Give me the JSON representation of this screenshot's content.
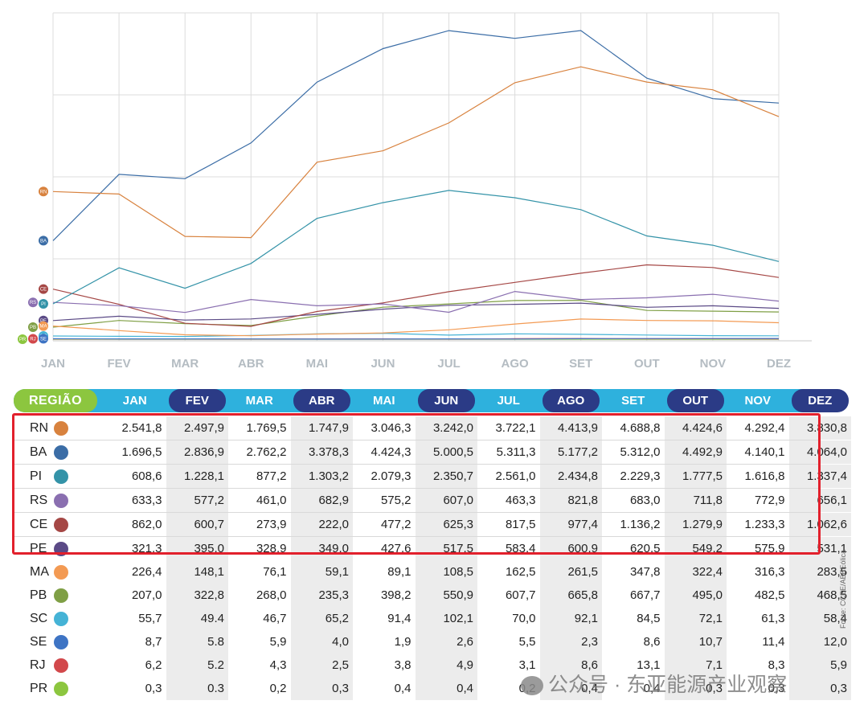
{
  "chart_data": {
    "type": "line",
    "x": [
      "JAN",
      "FEV",
      "MAR",
      "ABR",
      "MAI",
      "JUN",
      "JUL",
      "AGO",
      "SET",
      "OUT",
      "NOV",
      "DEZ"
    ],
    "ylim": [
      0,
      5312
    ],
    "grid": true,
    "legend": "left",
    "series": [
      {
        "name": "RN",
        "color": "#d8823e",
        "values": [
          2541.8,
          2497.9,
          1769.5,
          1747.9,
          3046.3,
          3242.0,
          3722.1,
          4413.9,
          4688.8,
          4424.6,
          4292.4,
          3830.8
        ]
      },
      {
        "name": "BA",
        "color": "#3b6da6",
        "values": [
          1696.5,
          2836.9,
          2762.2,
          3378.3,
          4424.3,
          5000.5,
          5311.3,
          5177.2,
          5312.0,
          4492.9,
          4140.1,
          4064.0
        ]
      },
      {
        "name": "PI",
        "color": "#3493a8",
        "values": [
          608.6,
          1228.1,
          877.2,
          1303.2,
          2079.3,
          2350.7,
          2561.0,
          2434.8,
          2229.3,
          1777.5,
          1616.8,
          1337.4
        ]
      },
      {
        "name": "RS",
        "color": "#8a6fb0",
        "values": [
          633.3,
          577.2,
          461.0,
          682.9,
          575.2,
          607.0,
          463.3,
          821.8,
          683.0,
          711.8,
          772.9,
          656.1
        ]
      },
      {
        "name": "CE",
        "color": "#a54745",
        "values": [
          862.0,
          600.7,
          273.9,
          222.0,
          477.2,
          625.3,
          817.5,
          977.4,
          1136.2,
          1279.9,
          1233.3,
          1062.6
        ]
      },
      {
        "name": "PE",
        "color": "#5b4a86",
        "values": [
          321.3,
          395.0,
          328.9,
          349.0,
          427.6,
          517.5,
          583.4,
          600.9,
          620.5,
          549.2,
          575.9,
          531.1
        ]
      },
      {
        "name": "MA",
        "color": "#f39a53",
        "values": [
          226.4,
          148.1,
          76.1,
          59.1,
          89.1,
          108.5,
          162.5,
          261.5,
          347.8,
          322.4,
          316.3,
          283.5
        ]
      },
      {
        "name": "PB",
        "color": "#7f9f45",
        "values": [
          207.0,
          322.8,
          268.0,
          235.3,
          398.2,
          550.9,
          607.7,
          665.8,
          667.7,
          495.0,
          482.5,
          468.5
        ]
      },
      {
        "name": "SC",
        "color": "#45b3d6",
        "values": [
          55.7,
          49.4,
          46.7,
          65.2,
          91.4,
          102.1,
          70.0,
          92.1,
          84.5,
          72.1,
          61.3,
          58.4
        ]
      },
      {
        "name": "SE",
        "color": "#3e74c4",
        "values": [
          8.7,
          5.8,
          5.9,
          4.0,
          1.9,
          2.6,
          5.5,
          2.3,
          8.6,
          10.7,
          11.4,
          12.0
        ]
      },
      {
        "name": "RJ",
        "color": "#d2484b",
        "values": [
          6.2,
          5.2,
          4.3,
          2.5,
          3.8,
          4.9,
          3.1,
          8.6,
          13.1,
          7.1,
          8.3,
          5.9
        ]
      },
      {
        "name": "PR",
        "color": "#8cc63f",
        "values": [
          0.3,
          0.3,
          0.2,
          0.3,
          0.4,
          0.4,
          0.2,
          0.4,
          0.4,
          0.3,
          0.3,
          0.3
        ]
      }
    ]
  },
  "table": {
    "header_label": "REGIÃO",
    "months": [
      "JAN",
      "FEV",
      "MAR",
      "ABR",
      "MAI",
      "JUN",
      "JUL",
      "AGO",
      "SET",
      "OUT",
      "NOV",
      "DEZ"
    ],
    "rows": [
      {
        "name": "RN",
        "color": "#d8823e",
        "cells": [
          "2.541,8",
          "2.497,9",
          "1.769,5",
          "1.747,9",
          "3.046,3",
          "3.242,0",
          "3.722,1",
          "4.413,9",
          "4.688,8",
          "4.424,6",
          "4.292,4",
          "3.830,8"
        ]
      },
      {
        "name": "BA",
        "color": "#3b6da6",
        "cells": [
          "1.696,5",
          "2.836,9",
          "2.762,2",
          "3.378,3",
          "4.424,3",
          "5.000,5",
          "5.311,3",
          "5.177,2",
          "5.312,0",
          "4.492,9",
          "4.140,1",
          "4.064,0"
        ]
      },
      {
        "name": "PI",
        "color": "#3493a8",
        "cells": [
          "608,6",
          "1.228,1",
          "877,2",
          "1.303,2",
          "2.079,3",
          "2.350,7",
          "2.561,0",
          "2.434,8",
          "2.229,3",
          "1.777,5",
          "1.616,8",
          "1.337,4"
        ]
      },
      {
        "name": "RS",
        "color": "#8a6fb0",
        "cells": [
          "633,3",
          "577,2",
          "461,0",
          "682,9",
          "575,2",
          "607,0",
          "463,3",
          "821,8",
          "683,0",
          "711,8",
          "772,9",
          "656,1"
        ]
      },
      {
        "name": "CE",
        "color": "#a54745",
        "cells": [
          "862,0",
          "600,7",
          "273,9",
          "222,0",
          "477,2",
          "625,3",
          "817,5",
          "977,4",
          "1.136,2",
          "1.279,9",
          "1.233,3",
          "1.062,6"
        ]
      },
      {
        "name": "PE",
        "color": "#5b4a86",
        "cells": [
          "321,3",
          "395,0",
          "328,9",
          "349,0",
          "427,6",
          "517,5",
          "583,4",
          "600,9",
          "620,5",
          "549,2",
          "575,9",
          "531,1"
        ]
      },
      {
        "name": "MA",
        "color": "#f39a53",
        "cells": [
          "226,4",
          "148,1",
          "76,1",
          "59,1",
          "89,1",
          "108,5",
          "162,5",
          "261,5",
          "347,8",
          "322,4",
          "316,3",
          "283,5"
        ]
      },
      {
        "name": "PB",
        "color": "#7f9f45",
        "cells": [
          "207,0",
          "322,8",
          "268,0",
          "235,3",
          "398,2",
          "550,9",
          "607,7",
          "665,8",
          "667,7",
          "495,0",
          "482,5",
          "468,5"
        ]
      },
      {
        "name": "SC",
        "color": "#45b3d6",
        "cells": [
          "55,7",
          "49.4",
          "46,7",
          "65,2",
          "91,4",
          "102,1",
          "70,0",
          "92,1",
          "84,5",
          "72,1",
          "61,3",
          "58,4"
        ]
      },
      {
        "name": "SE",
        "color": "#3e74c4",
        "cells": [
          "8,7",
          "5.8",
          "5,9",
          "4,0",
          "1,9",
          "2,6",
          "5,5",
          "2,3",
          "8,6",
          "10,7",
          "11,4",
          "12,0"
        ]
      },
      {
        "name": "RJ",
        "color": "#d2484b",
        "cells": [
          "6,2",
          "5.2",
          "4,3",
          "2,5",
          "3,8",
          "4,9",
          "3,1",
          "8,6",
          "13,1",
          "7,1",
          "8,3",
          "5,9"
        ]
      },
      {
        "name": "PR",
        "color": "#8cc63f",
        "cells": [
          "0,3",
          "0.3",
          "0,2",
          "0,3",
          "0,4",
          "0,4",
          "0,2",
          "0,4",
          "0,4",
          "0,3",
          "0,3",
          "0,3"
        ]
      }
    ]
  },
  "source_note": "Fonte: CCEE/ABEEólica",
  "watermark": "公众号 · 东亚能源产业观察"
}
